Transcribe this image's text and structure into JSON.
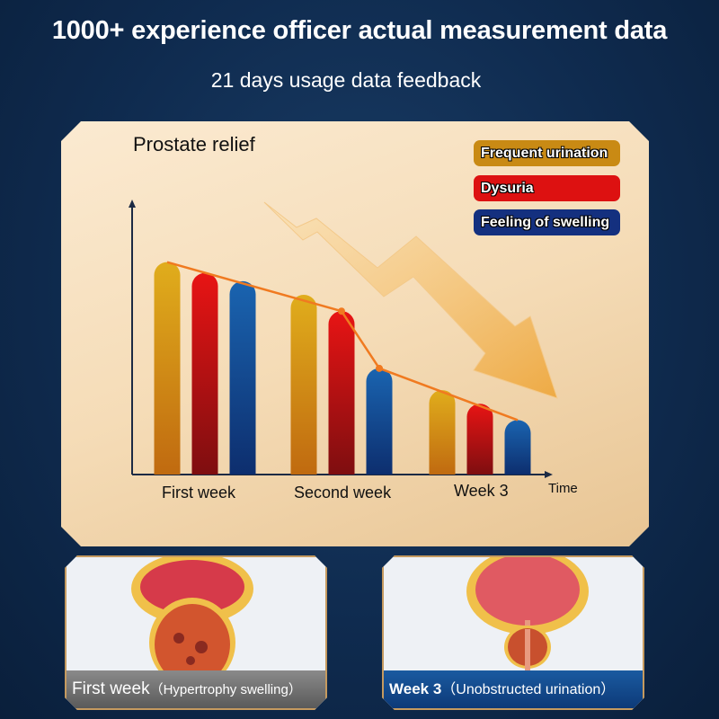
{
  "header": {
    "title": "1000+ experience officer actual measurement data",
    "subtitle": "21 days usage data feedback"
  },
  "chart_data": {
    "type": "bar",
    "title": "Prostate relief",
    "xlabel": "Time",
    "ylabel": "",
    "categories": [
      "First week",
      "Second week",
      "Week 3"
    ],
    "ylim": [
      0,
      100
    ],
    "legend_position": "top-right",
    "grid": false,
    "series": [
      {
        "name": "Frequent urination",
        "color": "#c98a14",
        "values": [
          78,
          66,
          31
        ]
      },
      {
        "name": "Dysuria",
        "color": "#dd1111",
        "values": [
          74,
          60,
          26
        ]
      },
      {
        "name": "Feeling of swelling",
        "color": "#14407f",
        "values": [
          71,
          39,
          20
        ]
      }
    ],
    "trend_line_color": "#f07a20",
    "annotation": "downward-arrow"
  },
  "photos": [
    {
      "label": "First week",
      "note": "（Hypertrophy swelling）",
      "caption_color": "#6e6e6e"
    },
    {
      "label": "Week 3",
      "note": "（Unobstructed urination）",
      "caption_color": "#0f4a8c"
    }
  ]
}
